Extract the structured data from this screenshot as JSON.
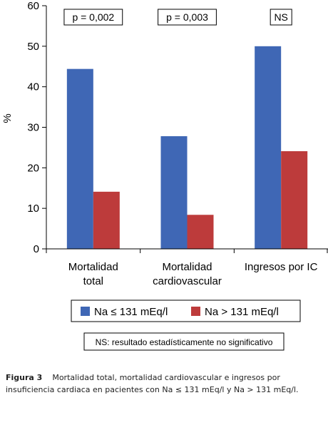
{
  "chart_data": {
    "type": "bar",
    "ylabel": "%",
    "ylim": [
      0,
      60
    ],
    "yticks": [
      0,
      10,
      20,
      30,
      40,
      50,
      60
    ],
    "categories": [
      [
        "Mortalidad",
        "total"
      ],
      [
        "Mortalidad",
        "cardiovascular"
      ],
      [
        "Ingresos por IC"
      ]
    ],
    "series": [
      {
        "name": "Na ≤ 131 mEq/l",
        "color": "#3F67B5",
        "values": [
          44.4,
          27.8,
          50.0
        ]
      },
      {
        "name": "Na > 131 mEq/l",
        "color": "#BD3B3B",
        "values": [
          14.1,
          8.4,
          24.1
        ]
      }
    ],
    "annotations": [
      "p = 0,002",
      "p = 0,003",
      "NS"
    ],
    "grid": false,
    "legend_position": "bottom"
  },
  "note": "NS: resultado estadísticamente no significativo",
  "caption": {
    "label": "Figura 3",
    "text": "Mortalidad total, mortalidad cardiovascular e ingresos por insuficiencia cardiaca en pacientes con Na ≤ 131 mEq/l y Na > 131 mEq/l."
  }
}
